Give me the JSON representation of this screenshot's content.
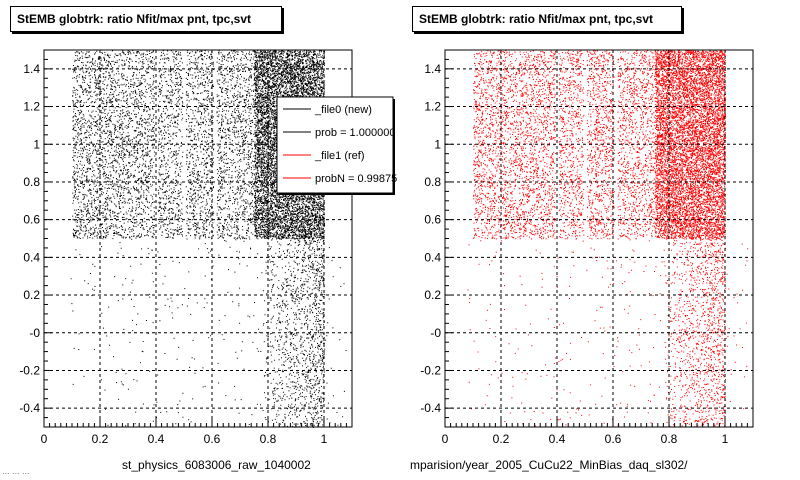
{
  "chart_data": [
    {
      "type": "scatter",
      "title": "StEMB globtrk: ratio Nfit/max pnt, tpc,svt",
      "xlabel": "st_physics_6083006_raw_1040002",
      "xlim": [
        0,
        1.1
      ],
      "ylim": [
        -0.5,
        1.5
      ],
      "xticks": [
        "0",
        "0.2",
        "0.4",
        "0.6",
        "0.8",
        "1"
      ],
      "yticks": [
        "-0.4",
        "-0.2",
        "-0",
        "0.2",
        "0.4",
        "0.6",
        "0.8",
        "1",
        "1.2",
        "1.4"
      ],
      "grid": true,
      "series": [
        {
          "name": "_file0 (new)",
          "color": "#000000",
          "description": "dense band from x 0.1 to 1.0 for y 0.5 to 1.5, sparse points for y below 0.5 concentrated near x 0.8 to 1.0"
        }
      ],
      "legend": {
        "placement": "top-right",
        "entries": [
          {
            "label": "_file0 (new)",
            "color": "#000000"
          },
          {
            "label": "prob = 1.000000",
            "color": "#000000"
          },
          {
            "label": "_file1 (ref)",
            "color": "#ff0000"
          },
          {
            "label": "probN = 0.99875",
            "color": "#ff0000"
          }
        ]
      }
    },
    {
      "type": "scatter",
      "title": "StEMB globtrk: ratio Nfit/max pnt, tpc,svt",
      "xlabel": "mparision/year_2005_CuCu22_MinBias_daq_sl302/",
      "xlim": [
        0,
        1.1
      ],
      "ylim": [
        -0.5,
        1.5
      ],
      "xticks": [
        "0",
        "0.2",
        "0.4",
        "0.6",
        "0.8",
        "1"
      ],
      "yticks": [
        "-0.4",
        "-0.2",
        "-0",
        "0.2",
        "0.4",
        "0.6",
        "0.8",
        "1",
        "1.2",
        "1.4"
      ],
      "grid": true,
      "series": [
        {
          "name": "_file1 (ref)",
          "color": "#ff0000",
          "description": "dense band from x 0.1 to 1.0 for y 0.5 to 1.5, sparse points for y below 0.5 concentrated near x 0.8 to 1.0"
        }
      ]
    }
  ],
  "footer_text": "...  ...  ..."
}
